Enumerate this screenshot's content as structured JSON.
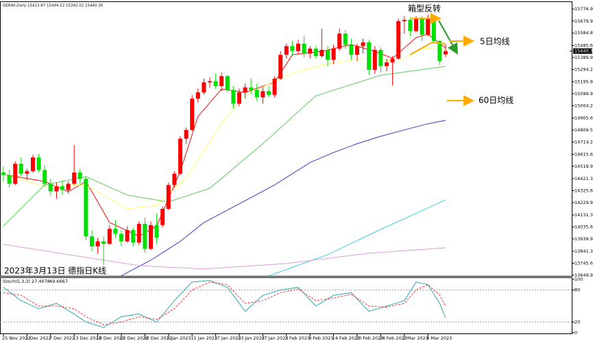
{
  "chart_data": {
    "type": "candlestick",
    "header": "GER40,Daily  15413.87 15494.52 15392.02 15440.30",
    "categories": [
      "25 Nov 2022",
      null,
      null,
      null,
      "1 Dec 2022",
      null,
      null,
      null,
      "7 Dec 2022",
      null,
      null,
      null,
      "13 Dec 2022",
      null,
      null,
      null,
      "19 Dec 2022",
      null,
      null,
      null,
      "23 Dec 2022",
      null,
      null,
      null,
      "30 Dec 2022",
      null,
      null,
      null,
      "5 Jan 2023",
      null,
      null,
      null,
      "11 Jan 2023",
      null,
      null,
      null,
      "17 Jan 2023",
      null,
      null,
      null,
      "23 Jan 2023",
      null,
      null,
      null,
      "27 Jan 2023",
      null,
      null,
      null,
      "2 Feb 2023",
      null,
      null,
      null,
      "8 Feb 2023",
      null,
      null,
      null,
      "14 Feb 2023",
      null,
      null,
      null,
      "20 Feb 2023",
      null,
      null,
      null,
      "24 Feb 2023",
      null,
      null,
      null,
      "2 Mar 2023",
      null,
      null,
      null,
      "8 Mar 2023",
      null,
      null,
      null
    ],
    "open": [
      14470,
      14450,
      14380,
      14540,
      14460,
      14480,
      14590,
      14490,
      14380,
      14320,
      14360,
      14330,
      14380,
      14470,
      14420,
      13960,
      13880,
      13920,
      13900,
      14020,
      13980,
      13920,
      14010,
      13910,
      14060,
      13860,
      14050,
      14050,
      14180,
      14370,
      14460,
      14740,
      14810,
      15060,
      15110,
      15190,
      15200,
      15160,
      15240,
      15130,
      15020,
      15110,
      15150,
      15130,
      15070,
      15120,
      15090,
      15220,
      15410,
      15480,
      15440,
      15500,
      15420,
      15460,
      15400,
      15450,
      15370,
      15460,
      15580,
      15490,
      15410,
      15480,
      15510,
      15290,
      15450,
      15320,
      15350,
      15380,
      15680,
      15690,
      15600,
      15700,
      15570,
      15700,
      15520,
      15413.87
    ],
    "high": [
      14520,
      14490,
      14560,
      14590,
      14500,
      14610,
      14620,
      14530,
      14420,
      14390,
      14410,
      14400,
      14690,
      14500,
      14440,
      14010,
      13950,
      13960,
      14050,
      14090,
      14010,
      14040,
      14030,
      14080,
      14110,
      14080,
      14140,
      14200,
      14390,
      14480,
      14760,
      14830,
      15090,
      15140,
      15220,
      15230,
      15260,
      15270,
      15250,
      15160,
      15140,
      15180,
      15220,
      15180,
      15150,
      15160,
      15240,
      15440,
      15500,
      15520,
      15530,
      15560,
      15480,
      15480,
      15620,
      15480,
      15490,
      15620,
      15610,
      15540,
      15500,
      15540,
      15530,
      15480,
      15470,
      15380,
      15400,
      15700,
      15720,
      15710,
      15720,
      15720,
      15730,
      15720,
      15530,
      15494.52
    ],
    "low": [
      14400,
      14350,
      14370,
      14440,
      14410,
      14470,
      14470,
      14360,
      14290,
      14260,
      14290,
      14300,
      14370,
      14380,
      13930,
      13840,
      13820,
      13730,
      13890,
      13950,
      13880,
      13910,
      13880,
      13890,
      13830,
      13850,
      13900,
      14030,
      14170,
      14350,
      14450,
      14700,
      14800,
      15030,
      15090,
      15150,
      15140,
      15120,
      15110,
      14980,
      15000,
      15060,
      15100,
      15040,
      15020,
      15070,
      15070,
      15210,
      15380,
      15400,
      15420,
      15390,
      15380,
      15380,
      15390,
      15320,
      15340,
      15440,
      15460,
      15370,
      15360,
      15420,
      15250,
      15260,
      15270,
      15280,
      15165,
      15370,
      15580,
      15560,
      15590,
      15520,
      15560,
      15500,
      15330,
      15392.02
    ],
    "close": [
      14450,
      14380,
      14540,
      14460,
      14480,
      14590,
      14490,
      14380,
      14320,
      14360,
      14330,
      14380,
      14470,
      14420,
      13960,
      13880,
      13920,
      13900,
      14020,
      13980,
      13920,
      14010,
      13910,
      14060,
      13860,
      14050,
      13950,
      14180,
      14370,
      14460,
      14740,
      14810,
      15060,
      15110,
      15190,
      15200,
      15160,
      15240,
      15130,
      15020,
      15110,
      15150,
      15130,
      15070,
      15120,
      15090,
      15220,
      15410,
      15480,
      15440,
      15500,
      15420,
      15460,
      15400,
      15450,
      15370,
      15460,
      15580,
      15490,
      15410,
      15480,
      15510,
      15290,
      15450,
      15320,
      15350,
      15380,
      15680,
      15690,
      15600,
      15700,
      15570,
      15700,
      15520,
      15360,
      15440.3
    ],
    "up_color": "#ff0000",
    "down_color": "#00e000",
    "ylim": [
      13644,
      15832
    ],
    "yticks": [
      {
        "value": 15776.9,
        "label": "15776.90"
      },
      {
        "value": 15679.9,
        "label": "15679.90"
      },
      {
        "value": 15584.8,
        "label": "15584.80"
      },
      {
        "value": 15485.6,
        "label": "15485.60"
      },
      {
        "value": 15389.9,
        "label": "15389.90"
      },
      {
        "value": 15294.2,
        "label": "15294.20"
      },
      {
        "value": 15195.9,
        "label": "15195.90"
      },
      {
        "value": 15099.9,
        "label": "15099.90"
      },
      {
        "value": 15004.2,
        "label": "15004.20"
      },
      {
        "value": 14905.6,
        "label": "14905.60"
      },
      {
        "value": 14809.5,
        "label": "14809.50"
      },
      {
        "value": 14714.2,
        "label": "14714.20"
      },
      {
        "value": 14615.6,
        "label": "14615.60"
      },
      {
        "value": 14519.9,
        "label": "14519.90"
      },
      {
        "value": 14421.3,
        "label": "14421.30"
      },
      {
        "value": 14325.6,
        "label": "14325.60"
      },
      {
        "value": 14229.9,
        "label": "14229.90"
      },
      {
        "value": 14131.3,
        "label": "14131.30"
      },
      {
        "value": 14035.6,
        "label": "14035.60"
      },
      {
        "value": 13939.9,
        "label": "13939.90"
      },
      {
        "value": 13841.3,
        "label": "13841.30"
      },
      {
        "value": 13745.6,
        "label": "13745.60"
      },
      {
        "value": 13649.9,
        "label": "13649.90"
      }
    ],
    "last_price": {
      "value": 15440.3,
      "label": "15440.30"
    },
    "lines": [
      {
        "color": "#ff0000",
        "x": [
          0,
          7,
          11,
          14,
          18,
          23,
          26,
          30,
          33,
          37,
          41,
          46,
          49,
          54,
          59,
          63,
          66,
          70,
          72,
          75
        ],
        "values": [
          14454,
          14399,
          14317,
          14399,
          14071,
          13961,
          14043,
          14481,
          14918,
          15137,
          15110,
          15192,
          15411,
          15438,
          15493,
          15438,
          15383,
          15548,
          15575,
          15465
        ]
      },
      {
        "color": "#ffff70",
        "x": [
          0,
          7,
          14,
          21,
          26,
          31,
          37,
          41,
          48,
          54,
          61,
          67,
          71,
          75
        ],
        "values": [
          14454,
          14360,
          14371,
          14180,
          14207,
          14426,
          14864,
          15083,
          15247,
          15329,
          15383,
          15356,
          15465,
          15454
        ]
      },
      {
        "color": "#5ccc5c",
        "x": [
          0,
          7,
          14,
          21,
          28,
          35,
          44,
          53,
          64,
          75
        ],
        "values": [
          14043,
          14371,
          14437,
          14290,
          14235,
          14344,
          14700,
          15083,
          15247,
          15318
        ]
      },
      {
        "color": "#3a3ac8",
        "x": [
          20,
          25,
          30,
          34,
          40,
          46,
          52,
          56,
          60,
          64,
          68,
          72,
          75
        ],
        "values": [
          13645,
          13770,
          13920,
          14070,
          14220,
          14371,
          14550,
          14630,
          14700,
          14760,
          14810,
          14860,
          14886
        ]
      },
      {
        "color": "#40d0e0",
        "x": [
          45,
          55,
          64,
          75
        ],
        "values": [
          13644,
          13814,
          14016,
          14251
        ]
      },
      {
        "color": "#dd9ddd",
        "x": [
          0,
          11,
          23,
          34,
          48,
          62,
          75
        ],
        "values": [
          13896,
          13814,
          13726,
          13699,
          13743,
          13825,
          13868
        ]
      }
    ],
    "annotations": [
      "箱型反转",
      "5日均线",
      "60日均线",
      "2023年3月13日 德指日K线"
    ],
    "stoch": {
      "title": "Stoch(5,3,3)",
      "ylim": [
        0,
        100
      ],
      "yticks": [
        100,
        80,
        20,
        0
      ],
      "main": {
        "color": "#30a8b0",
        "x": [
          0,
          3,
          6,
          9,
          12,
          14,
          17,
          20,
          23,
          26,
          29,
          32,
          35,
          38,
          41,
          44,
          47,
          50,
          53,
          56,
          59,
          62,
          65,
          68,
          70,
          72,
          74,
          75
        ],
        "values": [
          85,
          60,
          45,
          55,
          35,
          20,
          10,
          30,
          35,
          20,
          60,
          95,
          98,
          85,
          40,
          70,
          80,
          85,
          50,
          70,
          75,
          40,
          50,
          60,
          95,
          90,
          55,
          27.4078
        ]
      },
      "signal": {
        "color": "#ff3030",
        "x": [
          0,
          3,
          6,
          9,
          12,
          14,
          17,
          20,
          23,
          26,
          29,
          32,
          35,
          38,
          41,
          44,
          47,
          50,
          53,
          56,
          59,
          62,
          65,
          68,
          70,
          72,
          74,
          75
        ],
        "values": [
          75,
          70,
          50,
          50,
          45,
          30,
          15,
          20,
          30,
          25,
          45,
          80,
          95,
          90,
          55,
          60,
          75,
          82,
          60,
          65,
          72,
          50,
          48,
          55,
          80,
          90,
          70,
          49.6667
        ]
      }
    }
  }
}
